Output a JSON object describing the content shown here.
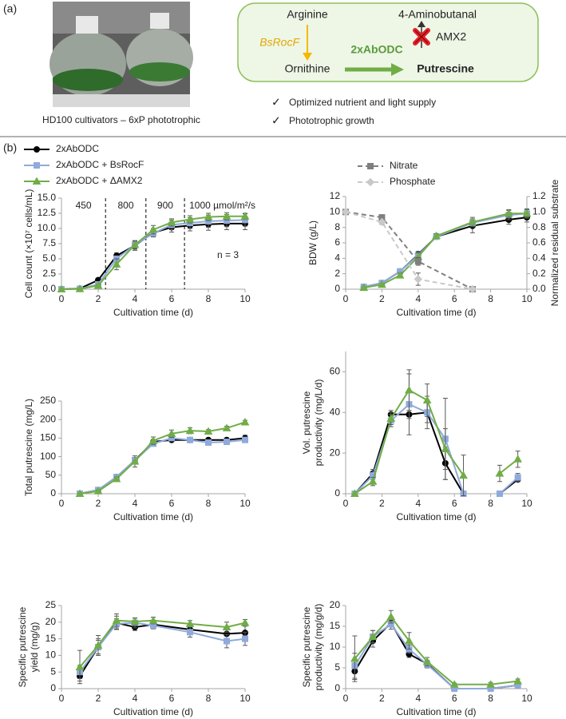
{
  "panel_a": {
    "label": "(a)",
    "photo_caption": "HD100 cultivators – 6xP phototrophic",
    "diagram": {
      "substrate": "Arginine",
      "byproduct": "4-Aminobutanal",
      "enzyme_1": "BsRocF",
      "enzyme_2": "2xAbODC",
      "knockout": "AMX2",
      "intermediate": "Ornithine",
      "product": "Putrescine"
    },
    "bullets": [
      "Optimized nutrient and light supply",
      "Phototrophic growth"
    ]
  },
  "panel_b": {
    "label": "(b)"
  },
  "chart_data": [
    {
      "type": "line",
      "ylabel": "Cell count (×10⁷ cells/mL)",
      "xlabel": "Cultivation time (d)",
      "xlim": [
        0,
        10
      ],
      "xticks": [
        0,
        2,
        4,
        6,
        8,
        10
      ],
      "ylim": [
        0,
        15
      ],
      "yticks": [
        {
          "value": 0,
          "label": "0.0"
        },
        2.5,
        {
          "value": 5,
          "label": "5.0"
        },
        7.5,
        {
          "value": 10,
          "label": "10.0"
        },
        12.5,
        {
          "value": 15,
          "label": "15.0"
        }
      ],
      "light_phase_bounds": [
        2.4,
        4.6,
        6.7
      ],
      "light_phases": [
        "450",
        "800",
        "900",
        "1000 µmol/m²/s"
      ],
      "note": "n = 3",
      "x": [
        0,
        1,
        2,
        3,
        4,
        5,
        6,
        7,
        8,
        9,
        10
      ],
      "series": [
        {
          "name": "2xAbODC",
          "color": "#000000",
          "marker": "circle",
          "values": [
            0,
            0.1,
            1.5,
            5.5,
            7.2,
            9.3,
            10.2,
            10.5,
            10.7,
            10.8,
            10.8
          ],
          "errors": [
            0,
            0.1,
            0.3,
            0.5,
            0.8,
            0.7,
            0.8,
            0.9,
            1,
            1,
            1
          ]
        },
        {
          "name": "2xAbODC + BsRocF",
          "color": "#8faadc",
          "marker": "square",
          "values": [
            0,
            0.05,
            0.8,
            5,
            7.3,
            9.2,
            10.6,
            10.9,
            11.2,
            11.3,
            11.4
          ],
          "errors": [
            0,
            0.1,
            0.2,
            0.5,
            0.7,
            0.5,
            0.8,
            0.9,
            1,
            1,
            1
          ]
        },
        {
          "name": "2xAbODC + ΔAMX2",
          "color": "#70ad47",
          "marker": "triangle",
          "values": [
            0,
            0.05,
            0.6,
            4.1,
            7.3,
            9.8,
            11,
            11.5,
            11.9,
            12,
            12
          ],
          "errors": [
            0,
            0.1,
            0.2,
            0.9,
            0.6,
            0.7,
            0.6,
            0.6,
            0.6,
            0.6,
            0.5
          ]
        }
      ]
    },
    {
      "type": "line",
      "ylabel": "BDW (g/L)",
      "y2label": "Normalized residual substrate",
      "xlabel": "Cultivation time (d)",
      "xlim": [
        0,
        10
      ],
      "xticks": [
        0,
        2,
        4,
        6,
        8,
        10
      ],
      "ylim": [
        0,
        12
      ],
      "yticks": [
        0,
        2,
        4,
        6,
        8,
        10,
        12
      ],
      "y2lim": [
        0,
        1.2
      ],
      "y2ticks": [
        {
          "value": 0,
          "label": "0.0"
        },
        0.2,
        0.4,
        0.6,
        0.8,
        {
          "value": 1,
          "label": "1.0"
        },
        1.2
      ],
      "series": [
        {
          "color": "#000000",
          "marker": "circle",
          "x": [
            1,
            2,
            3,
            4,
            5,
            7,
            9,
            10
          ],
          "values": [
            0.3,
            0.8,
            2.3,
            4.5,
            6.8,
            8.2,
            9,
            9.3
          ],
          "errors": [
            0.1,
            0.1,
            0.2,
            0.4,
            0.3,
            0.9,
            0.6,
            0.6
          ]
        },
        {
          "color": "#8faadc",
          "marker": "square",
          "x": [
            1,
            2,
            3,
            4,
            5,
            7,
            9,
            10
          ],
          "values": [
            0.3,
            0.8,
            2.3,
            4.4,
            6.8,
            8.6,
            9.6,
            9.8
          ],
          "errors": [
            0.1,
            0.1,
            0.2,
            0.3,
            0.3,
            0.5,
            0.6,
            0.6
          ]
        },
        {
          "color": "#70ad47",
          "marker": "triangle",
          "x": [
            1,
            2,
            3,
            4,
            5,
            7,
            9,
            10
          ],
          "values": [
            0.2,
            0.6,
            1.8,
            4.2,
            6.9,
            8.7,
            9.8,
            9.8
          ],
          "errors": [
            0.1,
            0.1,
            0.3,
            0.5,
            0.3,
            0.6,
            0.5,
            0.5
          ]
        },
        {
          "name": "Nitrate",
          "color": "#7f7f7f",
          "marker": "square",
          "dash": true,
          "axis": "y2",
          "x": [
            0,
            2,
            4,
            7
          ],
          "values": [
            1,
            0.93,
            0.36,
            0
          ],
          "errors": [
            0,
            0.03,
            0.05,
            0
          ]
        },
        {
          "name": "Phosphate",
          "color": "#c9c9c9",
          "marker": "diamond",
          "dash": true,
          "axis": "y2",
          "x": [
            0,
            2,
            4,
            7
          ],
          "values": [
            1,
            0.87,
            0.13,
            0
          ],
          "errors": [
            0,
            0.03,
            0.08,
            0
          ]
        }
      ]
    },
    {
      "type": "line",
      "ylabel": "Total putrescine (mg/L)",
      "xlabel": "Cultivation time (d)",
      "xlim": [
        0,
        10
      ],
      "xticks": [
        0,
        2,
        4,
        6,
        8,
        10
      ],
      "ylim": [
        0,
        250
      ],
      "yticks": [
        0,
        50,
        100,
        150,
        200,
        250
      ],
      "x": [
        1,
        2,
        3,
        4,
        5,
        6,
        7,
        8,
        9,
        10
      ],
      "series": [
        {
          "color": "#000000",
          "marker": "circle",
          "values": [
            0,
            10,
            45,
            90,
            140,
            145,
            145,
            145,
            145,
            150
          ],
          "errors": [
            0,
            3,
            5,
            8,
            6,
            5,
            5,
            5,
            5,
            8
          ]
        },
        {
          "color": "#8faadc",
          "marker": "square",
          "values": [
            0,
            10,
            45,
            90,
            135,
            150,
            145,
            138,
            140,
            145
          ],
          "errors": [
            0,
            3,
            5,
            8,
            6,
            6,
            5,
            5,
            5,
            5
          ]
        },
        {
          "color": "#70ad47",
          "marker": "triangle",
          "values": [
            0,
            7,
            40,
            87,
            143,
            162,
            170,
            168,
            177,
            193
          ],
          "errors": [
            0,
            3,
            5,
            15,
            10,
            10,
            8,
            5,
            5,
            5
          ]
        }
      ]
    },
    {
      "type": "line",
      "ylabel": [
        "Vol. putrescine",
        "productivity (mg/L/d)"
      ],
      "xlabel": "Cultivation time (d)",
      "xlim": [
        0,
        10
      ],
      "xticks": [
        0,
        2,
        4,
        6,
        8,
        10
      ],
      "ylim": [
        0,
        70
      ],
      "yticks": [
        0,
        20,
        40,
        60
      ],
      "x": [
        0.5,
        1.5,
        2.5,
        3.5,
        4.5,
        5.5,
        6.5,
        7.5,
        8.5,
        9.5
      ],
      "series": [
        {
          "color": "#000000",
          "marker": "circle",
          "values": [
            0,
            10,
            39,
            39,
            40,
            15,
            0,
            null,
            0,
            7
          ],
          "errors": [
            0,
            2,
            2,
            2,
            5,
            8,
            1,
            null,
            1,
            1
          ]
        },
        {
          "color": "#8faadc",
          "marker": "square",
          "values": [
            0,
            9,
            36,
            44,
            40,
            27,
            0,
            null,
            0,
            8
          ],
          "errors": [
            0,
            2,
            3,
            15,
            8,
            20,
            1,
            null,
            1,
            2
          ]
        },
        {
          "color": "#70ad47",
          "marker": "triangle",
          "values": [
            0,
            6,
            37,
            51,
            46,
            22,
            9,
            null,
            10,
            17
          ],
          "errors": [
            0,
            2,
            3,
            10,
            8,
            10,
            10,
            null,
            4,
            4
          ]
        }
      ]
    },
    {
      "type": "line",
      "ylabel": [
        "Specific putrescine",
        "yield (mg/g)"
      ],
      "xlabel": "Cultivation time (d)",
      "xlim": [
        0,
        10
      ],
      "xticks": [
        0,
        2,
        4,
        6,
        8,
        10
      ],
      "ylim": [
        0,
        25
      ],
      "yticks": [
        0,
        5,
        10,
        15,
        20,
        25
      ],
      "x": [
        1,
        2,
        3,
        4,
        5,
        7,
        9,
        10
      ],
      "series": [
        {
          "color": "#000000",
          "marker": "circle",
          "values": [
            3.8,
            12.5,
            19.8,
            18.5,
            19.3,
            17.8,
            16.5,
            16.8
          ],
          "errors": [
            1.5,
            2.5,
            2,
            1,
            1,
            1.5,
            2,
            2
          ]
        },
        {
          "color": "#8faadc",
          "marker": "square",
          "values": [
            5,
            12.5,
            19.5,
            19.8,
            19,
            17,
            14.3,
            15
          ],
          "errors": [
            2,
            2,
            1.5,
            1.5,
            1,
            1.5,
            2,
            2
          ]
        },
        {
          "color": "#70ad47",
          "marker": "triangle",
          "values": [
            6.5,
            13,
            20.5,
            20.2,
            20.5,
            19.5,
            18.5,
            19.8
          ],
          "errors": [
            5,
            3,
            2,
            1,
            1,
            1,
            1.5,
            1
          ]
        }
      ]
    },
    {
      "type": "line",
      "ylabel": [
        "Specific putrescine",
        "productivity (mg/g/d)"
      ],
      "xlabel": "Cultivation time (d)",
      "xlim": [
        0,
        10
      ],
      "xticks": [
        0,
        2,
        4,
        6,
        8,
        10
      ],
      "ylim": [
        0,
        20
      ],
      "yticks": [
        0,
        5,
        10,
        15,
        20
      ],
      "x": [
        0.5,
        1.5,
        2.5,
        3.5,
        4.5,
        6,
        8,
        9.5
      ],
      "series": [
        {
          "color": "#000000",
          "marker": "circle",
          "values": [
            4.2,
            11.5,
            15.8,
            8.3,
            6,
            0,
            0,
            0.8
          ],
          "errors": [
            2,
            1.5,
            1,
            0.8,
            0.8,
            0.3,
            0.3,
            0.3
          ]
        },
        {
          "color": "#8faadc",
          "marker": "square",
          "values": [
            5.5,
            12.5,
            15.5,
            9.5,
            5.8,
            0,
            0,
            0.8
          ],
          "errors": [
            3,
            1.5,
            1.2,
            1,
            0.8,
            0.3,
            0.3,
            0.3
          ]
        },
        {
          "color": "#70ad47",
          "marker": "triangle",
          "values": [
            7.2,
            12.5,
            17.3,
            11.5,
            6.5,
            1,
            1,
            1.8
          ],
          "errors": [
            5.5,
            1.5,
            1.5,
            2,
            1,
            0.3,
            0.5,
            0.5
          ]
        }
      ]
    }
  ]
}
